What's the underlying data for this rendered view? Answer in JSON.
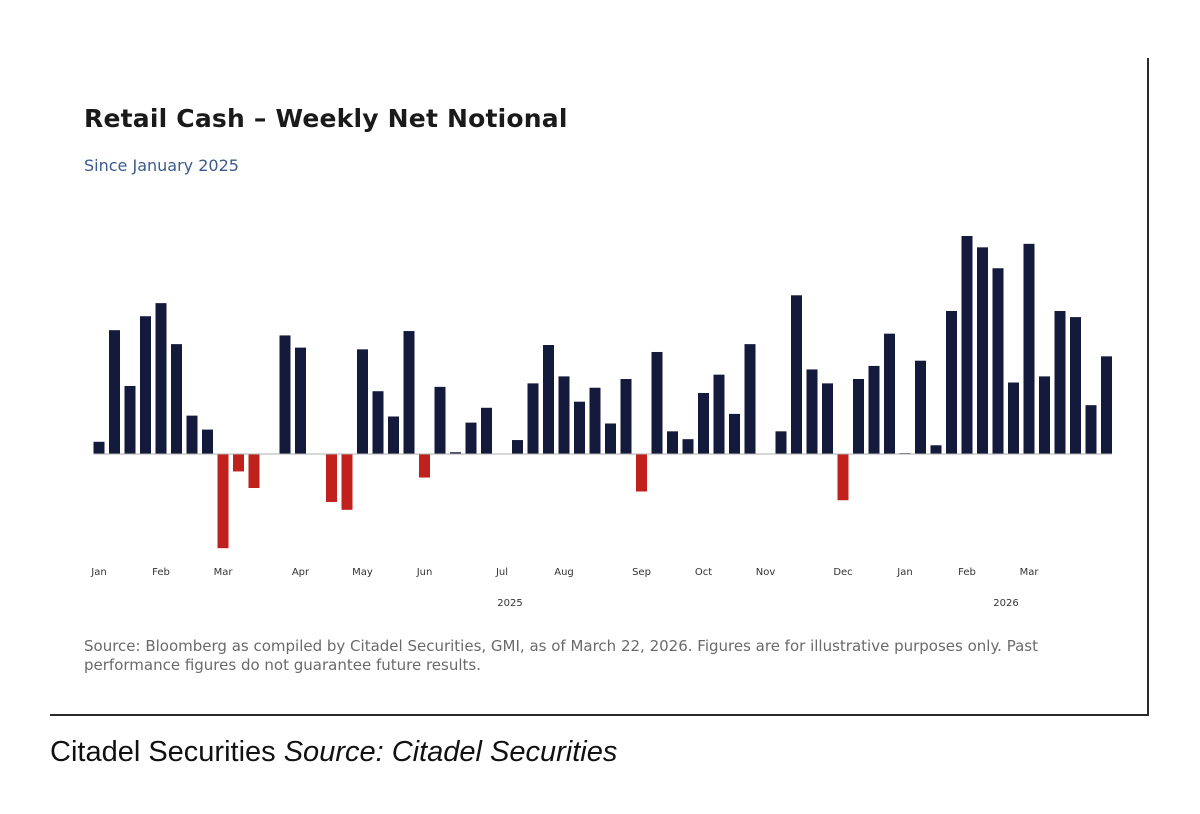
{
  "caption": {
    "prefix": "Citadel Securities",
    "source": "Source: Citadel Securities"
  },
  "footer": {
    "source_note": "Source: Bloomberg as compiled by Citadel Securities, GMI, as of March 22, 2026. Figures are for illustrative purposes only. Past performance figures do not guarantee future results."
  },
  "colors": {
    "positive": "#141a3c",
    "negative": "#c0211c",
    "baseline": "#b0b0b0"
  },
  "chart_data": {
    "type": "bar",
    "title": "Retail Cash – Weekly Net Notional",
    "subtitle": "Since January 2025",
    "xlabel": "",
    "ylabel": "",
    "grid": false,
    "ylim": [
      -110,
      250
    ],
    "values": [
      14,
      142,
      78,
      158,
      173,
      126,
      44,
      28,
      -108,
      -20,
      -39,
      0,
      136,
      122,
      0,
      -55,
      -64,
      120,
      72,
      43,
      141,
      -27,
      77,
      2,
      36,
      53,
      0,
      16,
      81,
      125,
      89,
      60,
      76,
      35,
      86,
      -43,
      117,
      26,
      17,
      70,
      91,
      46,
      126,
      0,
      26,
      182,
      97,
      81,
      -53,
      86,
      101,
      138,
      1,
      107,
      10,
      164,
      250,
      237,
      213,
      82,
      241,
      89,
      164,
      157,
      56,
      112
    ],
    "month_ticks": [
      {
        "label": "Jan",
        "index": 0
      },
      {
        "label": "Feb",
        "index": 4
      },
      {
        "label": "Mar",
        "index": 8
      },
      {
        "label": "Apr",
        "index": 13
      },
      {
        "label": "May",
        "index": 17
      },
      {
        "label": "Jun",
        "index": 21
      },
      {
        "label": "Jul",
        "index": 26
      },
      {
        "label": "Aug",
        "index": 30
      },
      {
        "label": "Sep",
        "index": 35
      },
      {
        "label": "Oct",
        "index": 39
      },
      {
        "label": "Nov",
        "index": 43
      },
      {
        "label": "Dec",
        "index": 48
      },
      {
        "label": "Jan",
        "index": 52
      },
      {
        "label": "Feb",
        "index": 56
      },
      {
        "label": "Mar",
        "index": 60
      }
    ],
    "year_labels": [
      {
        "label": "2025",
        "index": 26
      },
      {
        "label": "2026",
        "index": 58
      }
    ]
  }
}
